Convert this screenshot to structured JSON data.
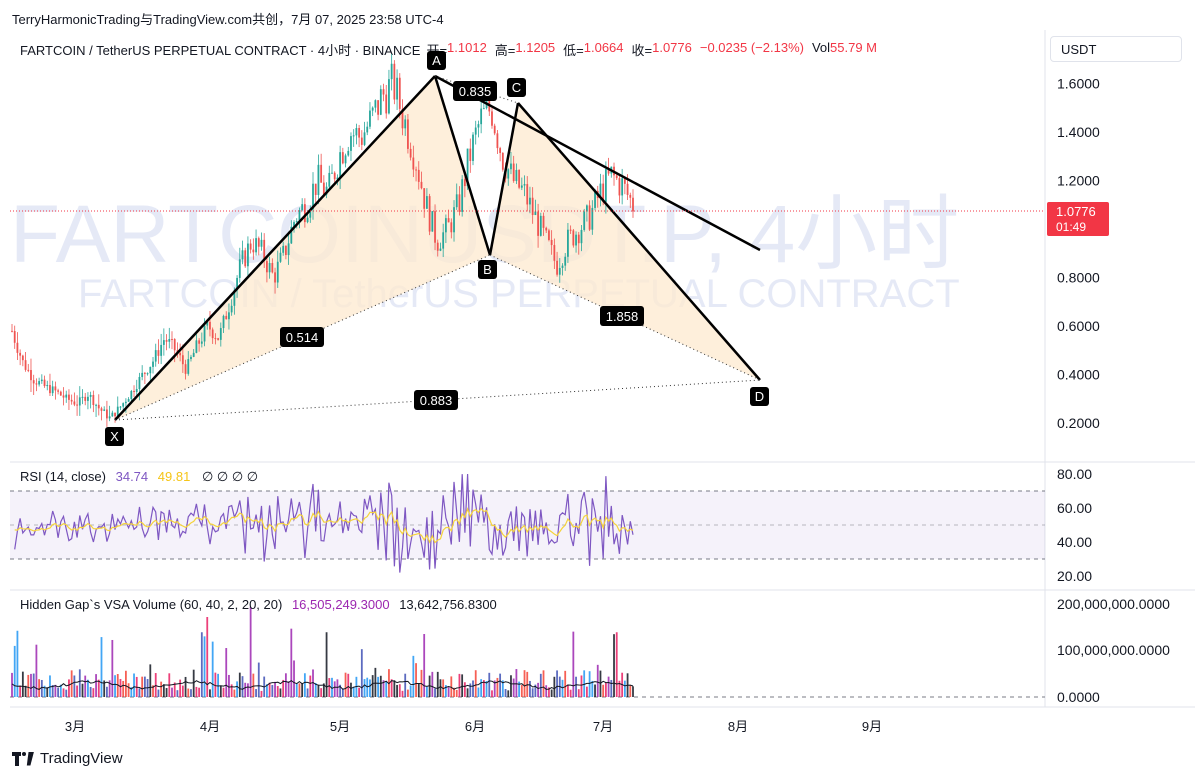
{
  "header": {
    "caption": "TerryHarmonicTrading与TradingView.com共创，7月 07, 2025 23:58 UTC-4",
    "symbol": "FARTCOIN / TetherUS PERPETUAL CONTRACT · 4小时 · BINANCE",
    "ohlc": [
      {
        "k": "开=",
        "v": "1.1012"
      },
      {
        "k": "高=",
        "v": "1.1205"
      },
      {
        "k": "低=",
        "v": "1.0664"
      },
      {
        "k": "收=",
        "v": "1.0776"
      },
      {
        "k": "",
        "v": "−0.0235 (−2.13%)"
      },
      {
        "k": "Vol",
        "v": "55.79 M"
      }
    ],
    "currency_button": "USDT"
  },
  "watermark": {
    "line1": "FARTCOINUSDT.P, 4小时",
    "line2": "FARTCOIN / TetherUS PERPETUAL CONTRACT"
  },
  "rsi": {
    "label": "RSI (14, close)",
    "value1": "34.74",
    "value2": "49.81",
    "symbols": "∅ ∅ ∅ ∅",
    "ticks": [
      "80.00",
      "60.00",
      "40.00",
      "20.00"
    ]
  },
  "volume": {
    "label": "Hidden Gap`s VSA Volume (60, 40, 2, 20, 20)",
    "value1": "16,505,249.3000",
    "value2": "13,642,756.8300",
    "ticks": [
      "200,000,000.0000",
      "100,000,000.0000",
      "0.0000"
    ]
  },
  "footer": {
    "brand": "TradingView"
  },
  "chart_data": {
    "type": "line",
    "title": "FARTCOIN / TetherUS PERPETUAL CONTRACT · 4小时 · BINANCE",
    "price_ticks": [
      "1.6000",
      "1.4000",
      "1.2000",
      "0.8000",
      "0.6000",
      "0.4000",
      "0.2000"
    ],
    "price_tick_values": [
      1.6,
      1.4,
      1.2,
      0.8,
      0.6,
      0.4,
      0.2
    ],
    "ylim": [
      0.05,
      1.75
    ],
    "x_labels": [
      "3月",
      "4月",
      "5月",
      "6月",
      "7月",
      "8月",
      "9月"
    ],
    "last_price": "1.0776",
    "last_price_value": 1.0776,
    "countdown": "01:49",
    "harmonic_points": [
      {
        "label": "X",
        "value": 0.22
      },
      {
        "label": "A",
        "value": 1.65
      },
      {
        "label": "B",
        "value": 0.9
      },
      {
        "label": "C",
        "value": 1.52
      },
      {
        "label": "D",
        "value": 0.38
      }
    ],
    "ratios": [
      "0.514",
      "0.835",
      "1.858",
      "0.883"
    ],
    "price_series_approx": [
      0.58,
      0.45,
      0.38,
      0.35,
      0.33,
      0.3,
      0.28,
      0.32,
      0.26,
      0.22,
      0.27,
      0.33,
      0.4,
      0.46,
      0.55,
      0.5,
      0.42,
      0.52,
      0.6,
      0.55,
      0.7,
      0.85,
      0.95,
      0.9,
      0.8,
      0.9,
      1.05,
      1.1,
      1.2,
      1.15,
      1.3,
      1.4,
      1.38,
      1.45,
      1.55,
      1.6,
      1.45,
      1.3,
      1.1,
      0.95,
      1.0,
      1.1,
      1.3,
      1.45,
      1.5,
      1.3,
      1.2,
      1.15,
      1.05,
      0.95,
      0.85,
      0.95,
      1.0,
      1.05,
      1.15,
      1.22,
      1.18,
      1.1
    ],
    "colors": {
      "up": "#26a69a",
      "down": "#ef5350",
      "pattern_fill": "#fde9cf",
      "price_label_bg": "#f23645",
      "rsi_line": "#7e57c2",
      "rsi_ma": "#f5d33b"
    }
  }
}
